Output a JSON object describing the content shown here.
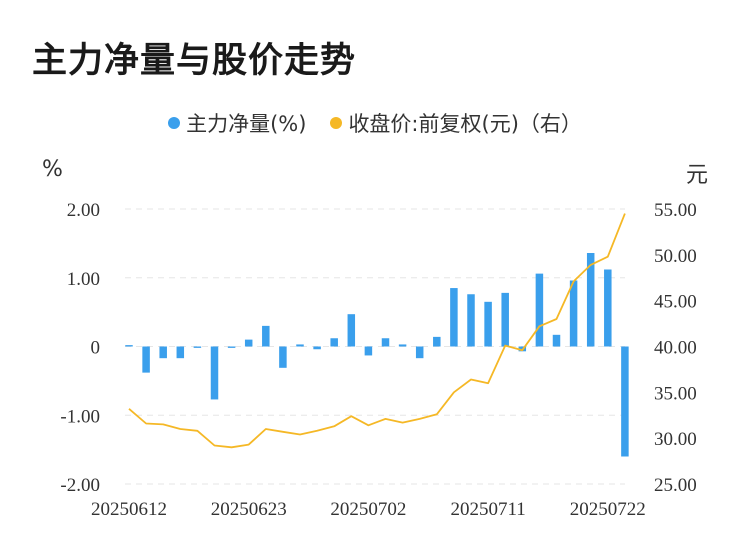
{
  "title": "主力净量与股价走势",
  "legend": {
    "items": [
      {
        "label": "主力净量(%)",
        "color": "#3a9fec"
      },
      {
        "label": "收盘价:前复权(元)（右）",
        "color": "#f5b826"
      }
    ]
  },
  "units": {
    "left": "%",
    "right": "元"
  },
  "chart_data": {
    "type": "bar",
    "title": "主力净量与股价走势",
    "x_ticks": [
      "20250612",
      "20250623",
      "20250702",
      "20250711",
      "20250722"
    ],
    "x_tick_positions": [
      0,
      7,
      14,
      21,
      28
    ],
    "yleft": {
      "ylim": [
        -2.0,
        2.0
      ],
      "ticks": [
        "2.00",
        "1.00",
        "0",
        "-1.00",
        "-2.00"
      ],
      "tick_values": [
        2.0,
        1.0,
        0,
        -1.0,
        -2.0
      ]
    },
    "yright": {
      "ylim": [
        25.0,
        55.0
      ],
      "ticks": [
        "55.00",
        "50.00",
        "45.00",
        "40.00",
        "35.00",
        "30.00",
        "25.00"
      ],
      "tick_values": [
        55,
        50,
        45,
        40,
        35,
        30,
        25
      ]
    },
    "grid": true,
    "legend_position": "top-center",
    "series": [
      {
        "name": "主力净量(%)",
        "type": "bar",
        "axis": "left",
        "color": "#3a9fec",
        "values": [
          0.02,
          -0.38,
          -0.17,
          -0.17,
          -0.02,
          -0.77,
          -0.02,
          0.1,
          0.3,
          -0.31,
          0.03,
          -0.04,
          0.12,
          0.47,
          -0.13,
          0.12,
          0.03,
          -0.17,
          0.14,
          0.85,
          0.76,
          0.65,
          0.78,
          -0.07,
          1.06,
          0.17,
          0.96,
          1.36,
          1.12,
          -1.6
        ]
      },
      {
        "name": "收盘价:前复权(元)（右）",
        "type": "line",
        "axis": "right",
        "color": "#f5b826",
        "values": [
          33.2,
          31.6,
          31.5,
          31.0,
          30.8,
          29.2,
          29.0,
          29.3,
          31.0,
          30.7,
          30.4,
          30.8,
          31.3,
          32.4,
          31.4,
          32.1,
          31.7,
          32.1,
          32.6,
          35.0,
          36.4,
          36.0,
          40.1,
          39.6,
          42.2,
          43.0,
          47.1,
          48.9,
          49.8,
          54.5
        ]
      }
    ]
  }
}
